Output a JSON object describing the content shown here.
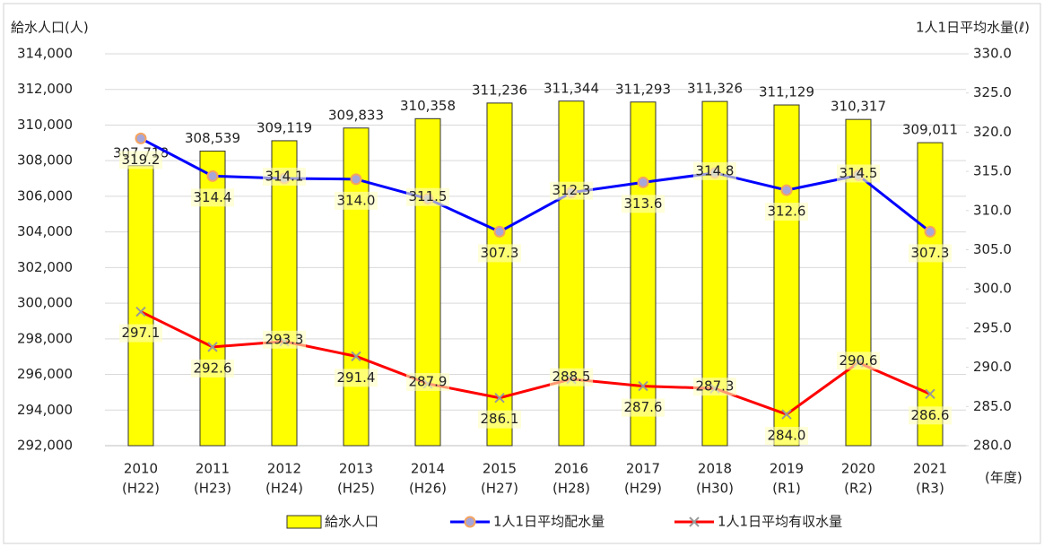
{
  "chart_data": {
    "type": "combo",
    "y_axis_label": "給水人口(人)",
    "y2_axis_label": "1人1日平均水量(ℓ)",
    "x_axis_label": "(年度)",
    "categories": [
      [
        "2010",
        "(H22)"
      ],
      [
        "2011",
        "(H23)"
      ],
      [
        "2012",
        "(H24)"
      ],
      [
        "2013",
        "(H25)"
      ],
      [
        "2014",
        "(H26)"
      ],
      [
        "2015",
        "(H27)"
      ],
      [
        "2016",
        "(H28)"
      ],
      [
        "2017",
        "(H29)"
      ],
      [
        "2018",
        "(H30)"
      ],
      [
        "2019",
        "(R1)"
      ],
      [
        "2020",
        "(R2)"
      ],
      [
        "2021",
        "(R3)"
      ]
    ],
    "series": [
      {
        "name": "給水人口",
        "type": "bar",
        "color": "#ffff00",
        "values": [
          307718,
          308539,
          309119,
          309833,
          310358,
          311236,
          311344,
          311293,
          311326,
          311129,
          310317,
          309011
        ],
        "value_labels": [
          "307,718",
          "308,539",
          "309,119",
          "309,833",
          "310,358",
          "311,236",
          "311,344",
          "311,293",
          "311,326",
          "311,129",
          "310,317",
          "309,011"
        ]
      },
      {
        "name": "1人1日平均配水量",
        "type": "line",
        "axis": "y2",
        "color": "#0000ff",
        "marker": "circle",
        "values": [
          319.2,
          314.4,
          314.1,
          314.0,
          311.5,
          307.3,
          312.3,
          313.6,
          314.8,
          312.6,
          314.5,
          307.3
        ],
        "value_labels": [
          "319.2",
          "314.4",
          "314.1",
          "314.0",
          "311.5",
          "307.3",
          "312.3",
          "313.6",
          "314.8",
          "312.6",
          "314.5",
          "307.3"
        ]
      },
      {
        "name": "1人1日平均有収水量",
        "type": "line",
        "axis": "y2",
        "color": "#ff0000",
        "marker": "x",
        "values": [
          297.1,
          292.6,
          293.3,
          291.4,
          287.9,
          286.1,
          288.5,
          287.6,
          287.3,
          284.0,
          290.6,
          286.6
        ],
        "value_labels": [
          "297.1",
          "292.6",
          "293.3",
          "291.4",
          "287.9",
          "286.1",
          "288.5",
          "287.6",
          "287.3",
          "284.0",
          "290.6",
          "286.6"
        ]
      }
    ],
    "ylim": [
      292000,
      314000
    ],
    "yticks": [
      {
        "value": 292000,
        "label": "292,000"
      },
      {
        "value": 294000,
        "label": "294,000"
      },
      {
        "value": 296000,
        "label": "296,000"
      },
      {
        "value": 298000,
        "label": "298,000"
      },
      {
        "value": 300000,
        "label": "300,000"
      },
      {
        "value": 302000,
        "label": "302,000"
      },
      {
        "value": 304000,
        "label": "304,000"
      },
      {
        "value": 306000,
        "label": "306,000"
      },
      {
        "value": 308000,
        "label": "308,000"
      },
      {
        "value": 310000,
        "label": "310,000"
      },
      {
        "value": 312000,
        "label": "312,000"
      },
      {
        "value": 314000,
        "label": "314,000"
      }
    ],
    "y2lim": [
      280,
      330
    ],
    "y2ticks": [
      {
        "value": 280,
        "label": "280.0"
      },
      {
        "value": 285,
        "label": "285.0"
      },
      {
        "value": 290,
        "label": "290.0"
      },
      {
        "value": 295,
        "label": "295.0"
      },
      {
        "value": 300,
        "label": "300.0"
      },
      {
        "value": 305,
        "label": "305.0"
      },
      {
        "value": 310,
        "label": "310.0"
      },
      {
        "value": 315,
        "label": "315.0"
      },
      {
        "value": 320,
        "label": "320.0"
      },
      {
        "value": 325,
        "label": "325.0"
      },
      {
        "value": 330,
        "label": "330.0"
      }
    ],
    "grid": true,
    "legend": "bottom"
  }
}
